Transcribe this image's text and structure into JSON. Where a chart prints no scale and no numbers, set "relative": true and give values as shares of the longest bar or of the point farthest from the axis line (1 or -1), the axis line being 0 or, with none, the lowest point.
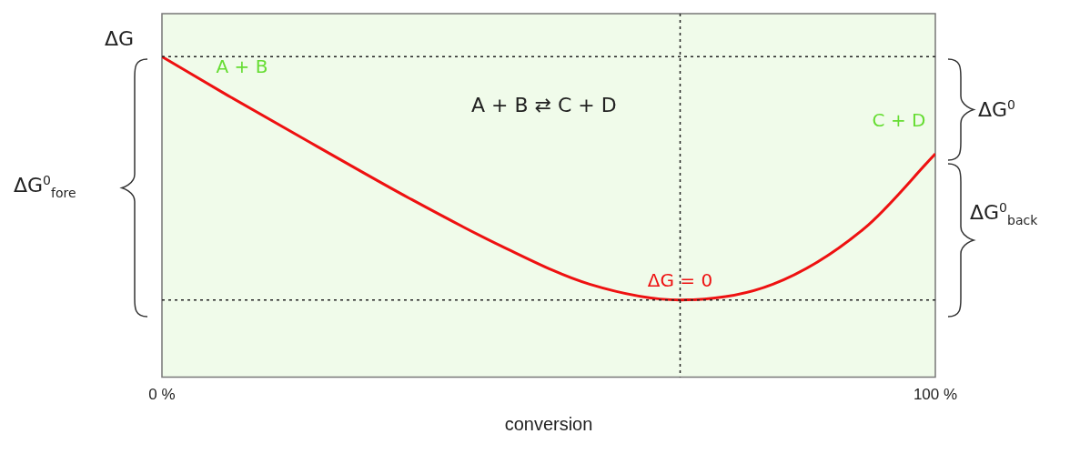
{
  "chart_data": {
    "type": "line",
    "relative": true,
    "xlabel": "conversion",
    "ylabel": "ΔG",
    "x": [
      0,
      8.5,
      20.2,
      32,
      43.8,
      55.3,
      67,
      79,
      90.8,
      100
    ],
    "series": [
      {
        "color": "#ee1111",
        "values": [
          1,
          0.879,
          0.718,
          0.558,
          0.41,
          0.29,
          0.241,
          0.29,
          0.464,
          0.697
        ]
      }
    ],
    "xlim": [
      0,
      100
    ],
    "xticks": [
      {
        "value": 0,
        "label": "0 %"
      },
      {
        "value": 100,
        "label": "100 %"
      }
    ],
    "grid": false,
    "legend": false,
    "marker": "none",
    "line_style": "solid",
    "ref_lines": [
      {
        "axis": "y",
        "value": 1,
        "color": "#222222",
        "line_style": "dotted"
      },
      {
        "axis": "y",
        "value": 0.241,
        "color": "#222222",
        "line_style": "dotted"
      },
      {
        "axis": "x",
        "value": 67,
        "color": "#222222",
        "line_style": "dotted"
      }
    ],
    "annotations": [
      {
        "text": "A + B",
        "x": 0,
        "y": 1
      },
      {
        "text": "C + D",
        "x": 100,
        "y": 0.697
      },
      {
        "text": "ΔG = 0",
        "x": 67,
        "y": 0.241
      },
      "A + B  ⇄  C + D",
      "ΔG$^{0}$",
      "ΔG$^{0}$$_{fore}$",
      "ΔG$^{0}$$_{back}$"
    ]
  }
}
